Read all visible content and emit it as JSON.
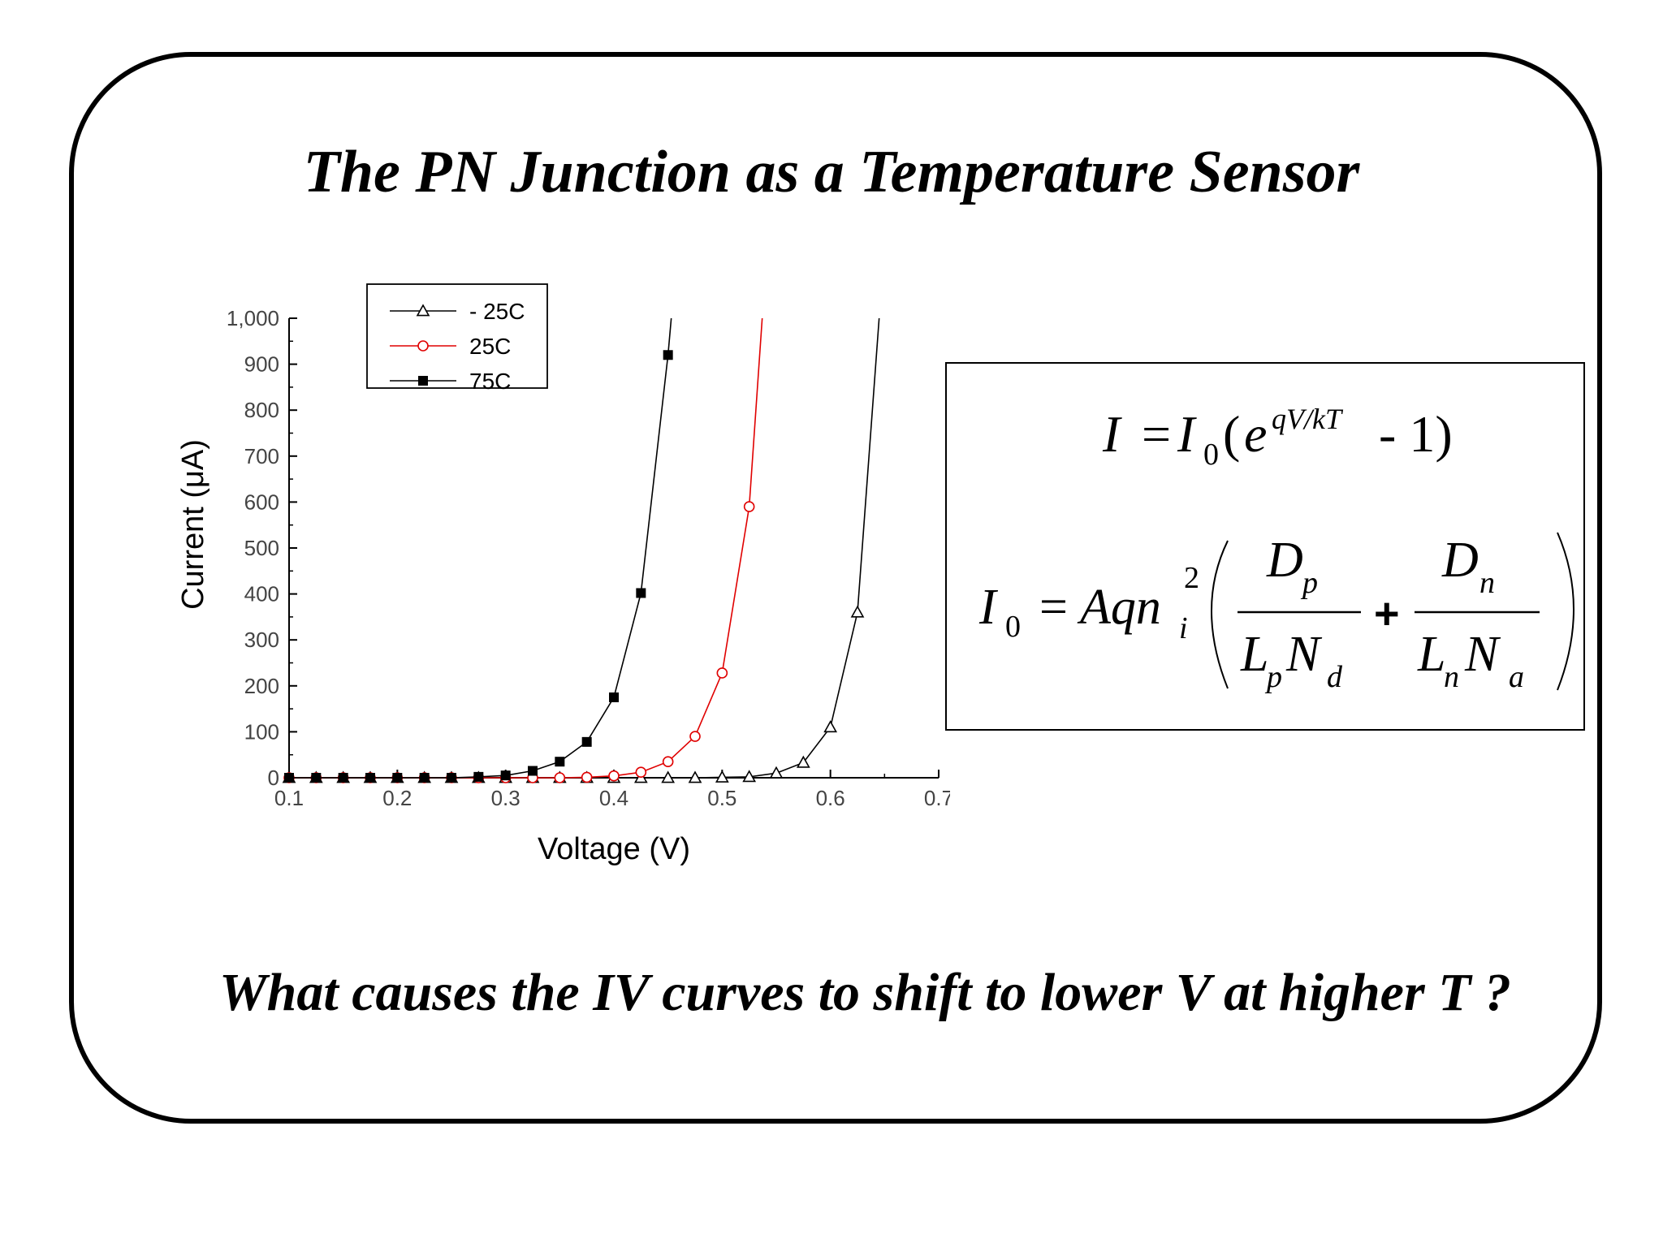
{
  "slide": {
    "title": "The PN Junction as a Temperature Sensor",
    "question": "What causes the IV curves to shift to lower V at higher T ?"
  },
  "equations": {
    "eq1": {
      "lhs": "I",
      "equals": "=",
      "I0": "I",
      "I0_sub": "0",
      "open": "(",
      "base": "e",
      "exponent": "qV/kT",
      "minus_one": "- 1)"
    },
    "eq2": {
      "lhs": "I",
      "lhs_sub": "0",
      "equals": "=",
      "Aq": "Aqn",
      "ni_sub": "i",
      "ni_sup": "2",
      "Dp": "D",
      "Dp_sub": "p",
      "Lp": "L",
      "Lp_sub": "p",
      "Nd": "N",
      "Nd_sub": "d",
      "plus": "+",
      "Dn": "D",
      "Dn_sub": "n",
      "Ln": "L",
      "Ln_sub": "n",
      "Na": "N",
      "Na_sub": "a"
    }
  },
  "chart_data": {
    "type": "line",
    "xlabel": "Voltage (V)",
    "ylabel": "Current (μA)",
    "xlim": [
      0.1,
      0.7
    ],
    "ylim": [
      0,
      1000
    ],
    "xticks": [
      "0.1",
      "0.2",
      "0.3",
      "0.4",
      "0.5",
      "0.6",
      "0.7"
    ],
    "yticks": [
      "0",
      "100",
      "200",
      "300",
      "400",
      "500",
      "600",
      "700",
      "800",
      "900",
      "1,000"
    ],
    "legend_position": "top-left",
    "series": [
      {
        "name": "- 25C",
        "color": "#000000",
        "marker": "open-triangle",
        "x": [
          0.1,
          0.125,
          0.15,
          0.175,
          0.2,
          0.225,
          0.25,
          0.275,
          0.3,
          0.325,
          0.35,
          0.375,
          0.4,
          0.425,
          0.45,
          0.475,
          0.5,
          0.525,
          0.55,
          0.575,
          0.6,
          0.625
        ],
        "y": [
          0,
          0,
          0,
          0,
          0,
          0,
          0,
          0,
          0,
          0,
          0,
          0,
          0,
          0,
          0,
          0,
          1,
          2,
          10,
          33,
          110,
          360
        ],
        "tail": [
          0.645,
          1000
        ]
      },
      {
        "name": "25C",
        "color": "#e00000",
        "marker": "open-circle",
        "x": [
          0.1,
          0.125,
          0.15,
          0.175,
          0.2,
          0.225,
          0.25,
          0.275,
          0.3,
          0.325,
          0.35,
          0.375,
          0.4,
          0.425,
          0.45,
          0.475,
          0.5,
          0.525
        ],
        "y": [
          0,
          0,
          0,
          0,
          0,
          0,
          0,
          0,
          0,
          0,
          0,
          1,
          4,
          12,
          35,
          90,
          228,
          590
        ],
        "tail": [
          0.537,
          1000
        ]
      },
      {
        "name": "75C",
        "color": "#000000",
        "marker": "filled-square",
        "x": [
          0.1,
          0.125,
          0.15,
          0.175,
          0.2,
          0.225,
          0.25,
          0.275,
          0.3,
          0.325,
          0.35,
          0.375,
          0.4,
          0.425,
          0.45
        ],
        "y": [
          0,
          0,
          0,
          0,
          0,
          0,
          0,
          2,
          5,
          15,
          35,
          78,
          175,
          402,
          920
        ],
        "tail": [
          0.453,
          1000
        ]
      }
    ]
  }
}
